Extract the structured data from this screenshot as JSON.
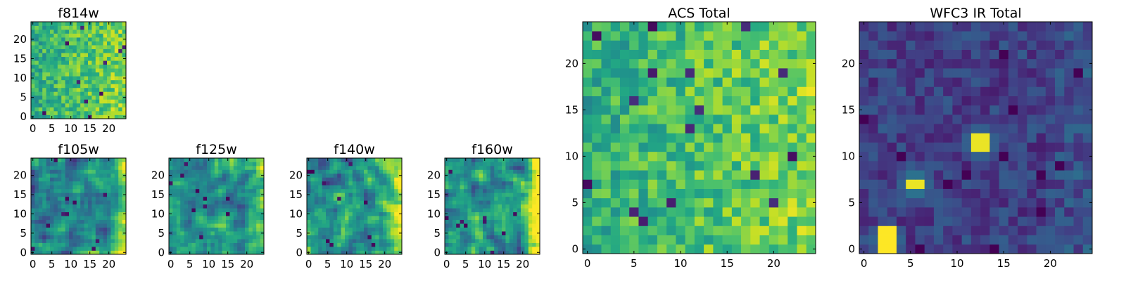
{
  "chart_data": [
    {
      "type": "heatmap",
      "title": "f814w",
      "data_id": "f814w",
      "grid": [
        25,
        25
      ],
      "xlim": [
        -0.5,
        24.5
      ],
      "ylim": [
        -0.5,
        24.5
      ],
      "colormap": "viridis",
      "x_ticks": [
        0,
        5,
        10,
        15,
        20
      ],
      "y_ticks": [
        0,
        5,
        10,
        15,
        20
      ],
      "x_tick_labels": [
        "0",
        "5",
        "10",
        "15",
        "20"
      ],
      "y_tick_labels": [
        "0",
        "5",
        "10",
        "15",
        "20"
      ]
    },
    {
      "type": "heatmap",
      "title": "f105w",
      "data_id": "f105w",
      "grid": [
        25,
        25
      ],
      "xlim": [
        -0.5,
        24.5
      ],
      "ylim": [
        -0.5,
        24.5
      ],
      "colormap": "viridis",
      "x_ticks": [
        0,
        5,
        10,
        15,
        20
      ],
      "y_ticks": [
        0,
        5,
        10,
        15,
        20
      ],
      "x_tick_labels": [
        "0",
        "5",
        "10",
        "15",
        "20"
      ],
      "y_tick_labels": [
        "0",
        "5",
        "10",
        "15",
        "20"
      ]
    },
    {
      "type": "heatmap",
      "title": "f125w",
      "data_id": "f125w",
      "grid": [
        25,
        25
      ],
      "xlim": [
        -0.5,
        24.5
      ],
      "ylim": [
        -0.5,
        24.5
      ],
      "colormap": "viridis",
      "x_ticks": [
        0,
        5,
        10,
        15,
        20
      ],
      "y_ticks": [
        0,
        5,
        10,
        15,
        20
      ],
      "x_tick_labels": [
        "0",
        "5",
        "10",
        "15",
        "20"
      ],
      "y_tick_labels": [
        "0",
        "5",
        "10",
        "15",
        "20"
      ]
    },
    {
      "type": "heatmap",
      "title": "f140w",
      "data_id": "f140w",
      "grid": [
        25,
        25
      ],
      "xlim": [
        -0.5,
        24.5
      ],
      "ylim": [
        -0.5,
        24.5
      ],
      "colormap": "viridis",
      "x_ticks": [
        0,
        5,
        10,
        15,
        20
      ],
      "y_ticks": [
        0,
        5,
        10,
        15,
        20
      ],
      "x_tick_labels": [
        "0",
        "5",
        "10",
        "15",
        "20"
      ],
      "y_tick_labels": [
        "0",
        "5",
        "10",
        "15",
        "20"
      ]
    },
    {
      "type": "heatmap",
      "title": "f160w",
      "data_id": "f160w",
      "grid": [
        25,
        25
      ],
      "xlim": [
        -0.5,
        24.5
      ],
      "ylim": [
        -0.5,
        24.5
      ],
      "colormap": "viridis",
      "x_ticks": [
        0,
        5,
        10,
        15,
        20
      ],
      "y_ticks": [
        0,
        5,
        10,
        15,
        20
      ],
      "x_tick_labels": [
        "0",
        "5",
        "10",
        "15",
        "20"
      ],
      "y_tick_labels": [
        "0",
        "5",
        "10",
        "15",
        "20"
      ]
    },
    {
      "type": "heatmap",
      "title": "ACS Total",
      "data_id": "acs_total",
      "grid": [
        25,
        25
      ],
      "xlim": [
        -0.5,
        24.5
      ],
      "ylim": [
        -0.5,
        24.5
      ],
      "colormap": "viridis",
      "x_ticks": [
        0,
        5,
        10,
        15,
        20
      ],
      "y_ticks": [
        0,
        5,
        10,
        15,
        20
      ],
      "x_tick_labels": [
        "0",
        "5",
        "10",
        "15",
        "20"
      ],
      "y_tick_labels": [
        "0",
        "5",
        "10",
        "15",
        "20"
      ]
    },
    {
      "type": "heatmap",
      "title": "WFC3 IR Total",
      "data_id": "wfc3_total",
      "grid": [
        25,
        25
      ],
      "xlim": [
        -0.5,
        24.5
      ],
      "ylim": [
        -0.5,
        24.5
      ],
      "colormap": "viridis",
      "x_ticks": [
        0,
        5,
        10,
        15,
        20
      ],
      "y_ticks": [
        0,
        5,
        10,
        15,
        20
      ],
      "x_tick_labels": [
        "0",
        "5",
        "10",
        "15",
        "20"
      ],
      "y_tick_labels": [
        "0",
        "5",
        "10",
        "15",
        "20"
      ],
      "bright_sources": [
        {
          "x": [
            2,
            3
          ],
          "y": [
            0,
            2
          ],
          "level": 1.0
        },
        {
          "x": [
            5,
            6
          ],
          "y": [
            7,
            7
          ],
          "level": 0.97
        },
        {
          "x": [
            12,
            13
          ],
          "y": [
            11,
            12
          ],
          "level": 0.97
        }
      ]
    }
  ]
}
